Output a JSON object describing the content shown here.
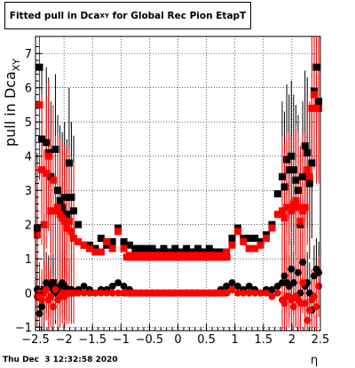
{
  "title": {
    "prefix": "Fitted pull in Dca",
    "subscript": "XY",
    "suffix": " for Global Rec Pion EtapT"
  },
  "footer": {
    "timestamp": "Thu Dec  3 12:32:58 2020"
  },
  "colors": {
    "black_series": "#000000",
    "red_series": "#ff0000",
    "grid": "#000000",
    "frame": "#000000"
  },
  "chart_data": {
    "type": "scatter",
    "title": "Fitted pull in DcaXY for Global Rec Pion EtapT",
    "xlabel": "η",
    "ylabel_main": "pull in Dca",
    "ylabel_sub": "XY",
    "xlim": [
      -2.5,
      2.5
    ],
    "ylim": [
      -1.1,
      7.5
    ],
    "grid": true,
    "xticks": [
      -2.5,
      -2,
      -1.5,
      -1,
      -0.5,
      0,
      0.5,
      1,
      1.5,
      2,
      2.5
    ],
    "xtick_labels": [
      "−2.5",
      "−2",
      "−1.5",
      "−1",
      "−0.5",
      "0",
      "0.5",
      "1",
      "1.5",
      "2",
      "2.5"
    ],
    "yticks": [
      -1,
      0,
      1,
      2,
      3,
      4,
      5,
      6,
      7
    ],
    "ytick_labels": [
      "−1",
      "0",
      "1",
      "2",
      "3",
      "4",
      "5",
      "6",
      "7"
    ],
    "series": [
      {
        "color": "#000000",
        "x": [
          -2.47,
          -2.43,
          -2.39,
          -2.35,
          -2.31,
          -2.27,
          -2.23,
          -2.19,
          -2.15,
          -2.11,
          -2.07,
          -2.03,
          -1.99,
          -1.95,
          -1.91,
          -1.87,
          -1.83,
          -1.75,
          -1.65,
          -1.55,
          -1.45,
          -1.35,
          -1.25,
          -1.15,
          -1.05,
          -0.95,
          -0.85,
          -0.75,
          -0.65,
          -0.55,
          -0.45,
          -0.35,
          -0.25,
          -0.15,
          -0.05,
          0.05,
          0.15,
          0.25,
          0.35,
          0.45,
          0.55,
          0.65,
          0.75,
          0.85,
          0.95,
          1.05,
          1.15,
          1.25,
          1.35,
          1.45,
          1.55,
          1.65,
          1.75,
          1.83,
          1.87,
          1.91,
          1.95,
          1.99,
          2.03,
          2.07,
          2.11,
          2.15,
          2.19,
          2.23,
          2.27,
          2.31,
          2.35,
          2.39,
          2.43,
          2.47
        ],
        "y": [
          1.9,
          6.6,
          4.5,
          0.1,
          4.4,
          4.1,
          3.4,
          0.3,
          4.2,
          3.0,
          2.7,
          2.5,
          2.8,
          2.3,
          3.8,
          2.8,
          2.4,
          2.0,
          1.4,
          1.4,
          1.3,
          1.6,
          1.4,
          1.5,
          1.9,
          1.5,
          1.4,
          1.3,
          1.3,
          1.3,
          1.3,
          1.2,
          1.3,
          1.2,
          1.3,
          1.2,
          1.3,
          1.2,
          1.3,
          1.2,
          1.3,
          1.2,
          1.2,
          1.2,
          1.6,
          1.9,
          1.6,
          1.6,
          1.6,
          1.5,
          1.7,
          2.0,
          2.9,
          3.4,
          3.1,
          3.9,
          3.6,
          4.0,
          3.6,
          3.3,
          3.0,
          2.0,
          3.4,
          4.3,
          4.1,
          3.2,
          3.8,
          5.9,
          6.6,
          5.6
        ],
        "y_near_zero_branch": [
          0.1,
          -0.6,
          -0.4,
          0.1,
          0.3,
          0.2,
          0.2,
          0.1,
          0.0,
          0.1,
          0.2,
          0.3,
          0.2,
          0.1,
          0.1,
          0.1,
          0.0,
          0.1,
          0.2,
          0.1,
          0.0,
          0.1,
          0.1,
          0.2,
          0.3,
          0.2,
          0.1,
          0.0,
          0.0,
          0.0,
          0.0,
          0.0,
          0.0,
          0.0,
          0.0,
          0.0,
          0.0,
          0.0,
          0.0,
          0.0,
          0.0,
          0.0,
          0.1,
          0.2,
          0.3,
          0.2,
          0.1,
          0.2,
          0.1,
          0.0,
          0.1,
          0.1,
          0.2,
          0.3,
          0.5,
          0.3,
          0.2,
          0.7,
          0.3,
          -0.1,
          0.6,
          0.0,
          0.9,
          0.2,
          0.3,
          0.0,
          -0.5,
          0.5,
          0.7,
          0.6
        ]
      },
      {
        "color": "#ff0000",
        "x": [
          -2.47,
          -2.43,
          -2.39,
          -2.35,
          -2.31,
          -2.27,
          -2.23,
          -2.19,
          -2.15,
          -2.11,
          -2.07,
          -2.03,
          -1.99,
          -1.95,
          -1.91,
          -1.87,
          -1.83,
          -1.75,
          -1.65,
          -1.55,
          -1.45,
          -1.35,
          -1.25,
          -1.15,
          -1.05,
          -0.95,
          -0.85,
          -0.75,
          -0.65,
          -0.55,
          -0.45,
          -0.35,
          -0.25,
          -0.15,
          -0.05,
          0.05,
          0.15,
          0.25,
          0.35,
          0.45,
          0.55,
          0.65,
          0.75,
          0.85,
          0.95,
          1.05,
          1.15,
          1.25,
          1.35,
          1.45,
          1.55,
          1.65,
          1.75,
          1.83,
          1.87,
          1.91,
          1.95,
          1.99,
          2.03,
          2.07,
          2.11,
          2.15,
          2.19,
          2.23,
          2.27,
          2.31,
          2.35,
          2.39,
          2.43,
          2.47
        ],
        "y": [
          1.7,
          5.5,
          3.6,
          2.0,
          3.5,
          4.0,
          2.4,
          3.3,
          2.4,
          2.5,
          2.3,
          2.2,
          2.1,
          1.9,
          2.1,
          1.8,
          1.6,
          1.5,
          1.4,
          1.3,
          1.2,
          1.2,
          1.5,
          1.3,
          1.8,
          1.3,
          1.1,
          1.1,
          1.1,
          1.1,
          1.1,
          1.1,
          1.1,
          1.1,
          1.1,
          1.1,
          1.1,
          1.1,
          1.1,
          1.1,
          1.1,
          1.1,
          1.1,
          1.2,
          1.4,
          1.8,
          1.5,
          1.3,
          1.3,
          1.4,
          1.6,
          1.9,
          2.3,
          2.4,
          2.2,
          2.5,
          2.5,
          2.4,
          2.6,
          2.7,
          2.5,
          2.1,
          2.4,
          2.5,
          3.6,
          3.4,
          5.4,
          5.8,
          5.4,
          5.4
        ],
        "y_near_zero_branch": [
          -0.1,
          0.0,
          -0.2,
          0.0,
          0.1,
          -0.2,
          -0.1,
          -0.4,
          0.1,
          -0.2,
          -0.1,
          0.0,
          -0.1,
          0.0,
          0.0,
          0.0,
          0.0,
          0.0,
          0.0,
          0.0,
          0.0,
          0.0,
          0.0,
          0.0,
          0.0,
          0.0,
          0.0,
          0.0,
          0.0,
          0.0,
          0.0,
          0.0,
          0.0,
          0.0,
          0.0,
          0.0,
          0.0,
          0.0,
          0.0,
          0.0,
          0.0,
          0.0,
          0.0,
          0.0,
          0.1,
          0.0,
          0.0,
          0.0,
          0.0,
          0.0,
          0.0,
          -0.1,
          0.0,
          -0.2,
          -0.3,
          -0.1,
          -0.1,
          -0.2,
          -0.4,
          -0.1,
          -0.2,
          -0.3,
          0.3,
          -0.3,
          -0.8,
          -0.5,
          -0.2,
          -0.1,
          -0.4,
          0.2
        ]
      }
    ]
  }
}
